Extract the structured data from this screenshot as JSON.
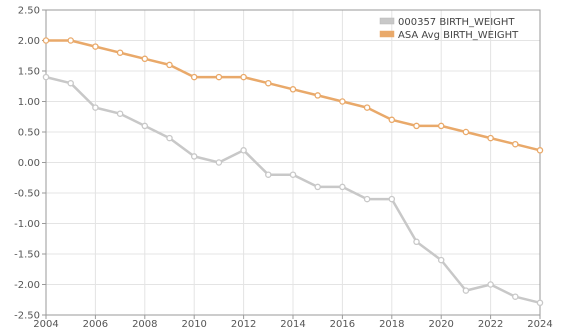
{
  "chart_data": {
    "type": "line",
    "title": "",
    "xlabel": "",
    "ylabel": "",
    "x": [
      2004,
      2005,
      2006,
      2007,
      2008,
      2009,
      2010,
      2011,
      2012,
      2013,
      2014,
      2015,
      2016,
      2017,
      2018,
      2019,
      2020,
      2021,
      2022,
      2023,
      2024
    ],
    "xlim": [
      2004,
      2024
    ],
    "ylim": [
      -2.5,
      2.5
    ],
    "x_ticks": [
      "2004",
      "2006",
      "2008",
      "2010",
      "2012",
      "2014",
      "2016",
      "2018",
      "2020",
      "2022",
      "2024"
    ],
    "y_ticks": [
      "2.50",
      "2.00",
      "1.50",
      "1.00",
      "0.50",
      "0.00",
      "-0.50",
      "-1.00",
      "-1.50",
      "-2.00",
      "-2.50"
    ],
    "grid": true,
    "legend_position": "top-right",
    "series": [
      {
        "name": "000357 BIRTH_WEIGHT",
        "color": "#c8c8c8",
        "marker_fill": "#ffffff",
        "values": [
          1.4,
          1.3,
          0.9,
          0.8,
          0.6,
          0.4,
          0.1,
          0.0,
          0.2,
          -0.2,
          -0.2,
          -0.4,
          -0.4,
          -0.6,
          -0.6,
          -1.3,
          -1.6,
          -2.1,
          -2.0,
          -2.2,
          -2.3
        ]
      },
      {
        "name": "ASA Avg BIRTH_WEIGHT",
        "color": "#e9a96a",
        "marker_fill": "#ffffff",
        "values": [
          2.0,
          2.0,
          1.9,
          1.8,
          1.7,
          1.6,
          1.4,
          1.4,
          1.4,
          1.3,
          1.2,
          1.1,
          1.0,
          0.9,
          0.7,
          0.6,
          0.6,
          0.5,
          0.4,
          0.3,
          0.2
        ]
      }
    ]
  }
}
